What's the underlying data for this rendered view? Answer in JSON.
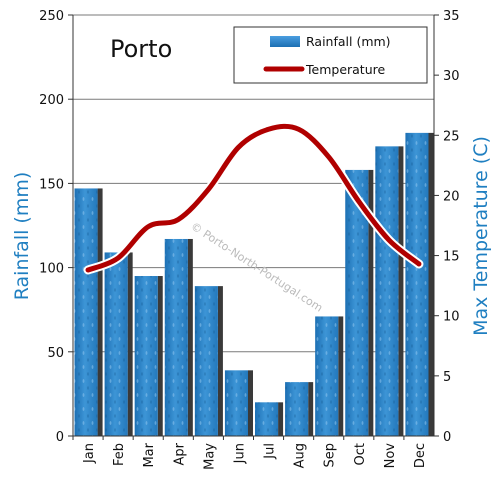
{
  "chart_data": {
    "type": "bar",
    "title": "Porto",
    "categories": [
      "Jan",
      "Feb",
      "Mar",
      "Apr",
      "May",
      "Jun",
      "Jul",
      "Aug",
      "Sep",
      "Oct",
      "Nov",
      "Dec"
    ],
    "series": [
      {
        "name": "Rainfall (mm)",
        "type": "bar",
        "axis": "left",
        "color": "#2e86c8",
        "values": [
          147,
          109,
          95,
          117,
          89,
          39,
          20,
          32,
          71,
          158,
          172,
          180
        ]
      },
      {
        "name": "Temperature",
        "type": "line",
        "axis": "right",
        "color": "#b00000",
        "values": [
          13.8,
          14.8,
          17.4,
          18,
          20.5,
          24,
          25.5,
          25.5,
          23.2,
          19.5,
          16.3,
          14.3
        ]
      }
    ],
    "ylabel": "Rainfall (mm)",
    "ylabel_right": "Max Temperature (C)",
    "ylim": [
      0,
      250
    ],
    "ylim_right": [
      0,
      35
    ],
    "yticks": [
      0,
      50,
      100,
      150,
      200,
      250
    ],
    "yticks_right": [
      0,
      5,
      10,
      15,
      20,
      25,
      30,
      35
    ],
    "grid": true,
    "legend_position": "top-right",
    "watermark": "© Porto-North-Portugal.com"
  }
}
